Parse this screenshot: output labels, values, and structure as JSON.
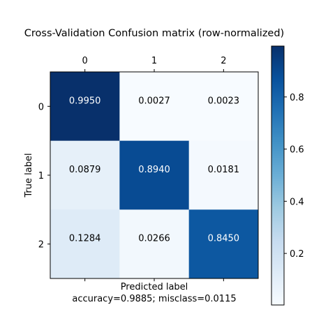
{
  "chart_data": {
    "type": "heatmap",
    "title": "Cross-Validation Confusion matrix (row-normalized)",
    "xlabel": "Predicted label",
    "xlabel_sub": "accuracy=0.9885; misclass=0.0115",
    "ylabel": "True label",
    "x_ticks": [
      "0",
      "1",
      "2"
    ],
    "y_ticks": [
      "0",
      "1",
      "2"
    ],
    "matrix": [
      [
        0.995,
        0.0027,
        0.0023
      ],
      [
        0.0879,
        0.894,
        0.0181
      ],
      [
        0.1284,
        0.0266,
        0.845
      ]
    ],
    "cell_labels": [
      [
        "0.9950",
        "0.0027",
        "0.0023"
      ],
      [
        "0.0879",
        "0.8940",
        "0.0181"
      ],
      [
        "0.1284",
        "0.0266",
        "0.8450"
      ]
    ],
    "colormap": "Blues",
    "vmin": 0.0023,
    "vmax": 0.995,
    "colorbar_ticks": [
      "0.2",
      "0.4",
      "0.6",
      "0.8"
    ],
    "colorbar_tick_values": [
      0.2,
      0.4,
      0.6,
      0.8
    ],
    "grid": false,
    "x_ticks_position": "top"
  }
}
